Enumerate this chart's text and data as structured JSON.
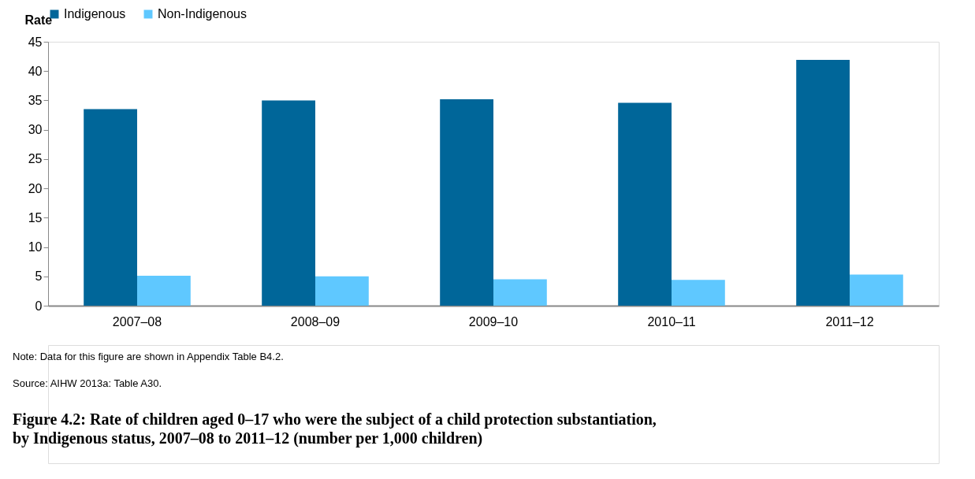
{
  "chart_data": {
    "type": "bar",
    "title": "Figure 4.2: Rate of children aged 0–17 who were the subject of a child protection substantiation, by Indigenous status, 2007–08 to 2011–12 (number per 1,000 children)",
    "ylabel": "Rate",
    "categories": [
      "2007–08",
      "2008–09",
      "2009–10",
      "2010–11",
      "2011–12"
    ],
    "series": [
      {
        "name": "Indigenous",
        "color": "#006699",
        "values": [
          33.5,
          35.0,
          35.2,
          34.6,
          41.9
        ]
      },
      {
        "name": "Non-Indigenous",
        "color": "#5fc8ff",
        "values": [
          5.1,
          5.0,
          4.5,
          4.4,
          5.3
        ]
      }
    ],
    "ylim": [
      0,
      45
    ],
    "yticks": [
      0,
      5,
      10,
      15,
      20,
      25,
      30,
      35,
      40,
      45
    ],
    "grid": false,
    "legend": "top",
    "annotations": [
      "Note: Data for this figure are shown in Appendix Table B4.2.",
      "Source: AIHW 2013a: Table A30."
    ]
  }
}
